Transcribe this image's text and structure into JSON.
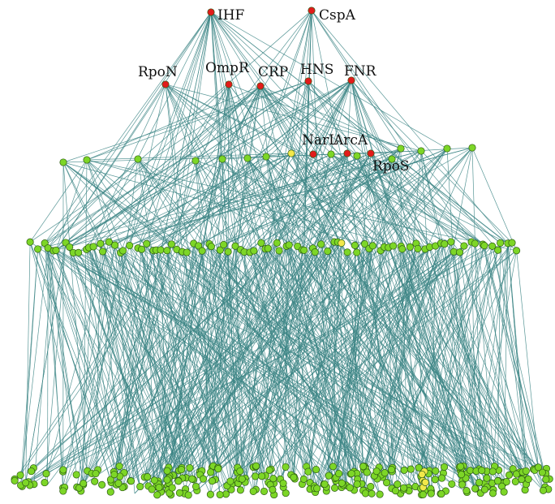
{
  "colors": {
    "edge": "#3c8585",
    "regulator": "#e21b1b",
    "target": "#7dd627",
    "highlight": "#f2e84a"
  },
  "top_regulators": [
    {
      "label": "IHF",
      "color": "regulator"
    },
    {
      "label": "CspA",
      "color": "regulator"
    },
    {
      "label": "RpoN",
      "color": "regulator"
    },
    {
      "label": "OmpR",
      "color": "regulator"
    },
    {
      "label": "CRP",
      "color": "regulator"
    },
    {
      "label": "HNS",
      "color": "regulator"
    },
    {
      "label": "FNR",
      "color": "regulator"
    },
    {
      "label": "NarL",
      "color": "highlight"
    },
    {
      "label": "ArcA",
      "color": "regulator"
    },
    {
      "label": "RpoS",
      "color": "regulator"
    }
  ],
  "extra_regulator_nodes": 1,
  "mid_level_nodes": 14,
  "layer3_nodes": 95,
  "bottom_layer_nodes": 300,
  "bottom_highlight_nodes": 6
}
